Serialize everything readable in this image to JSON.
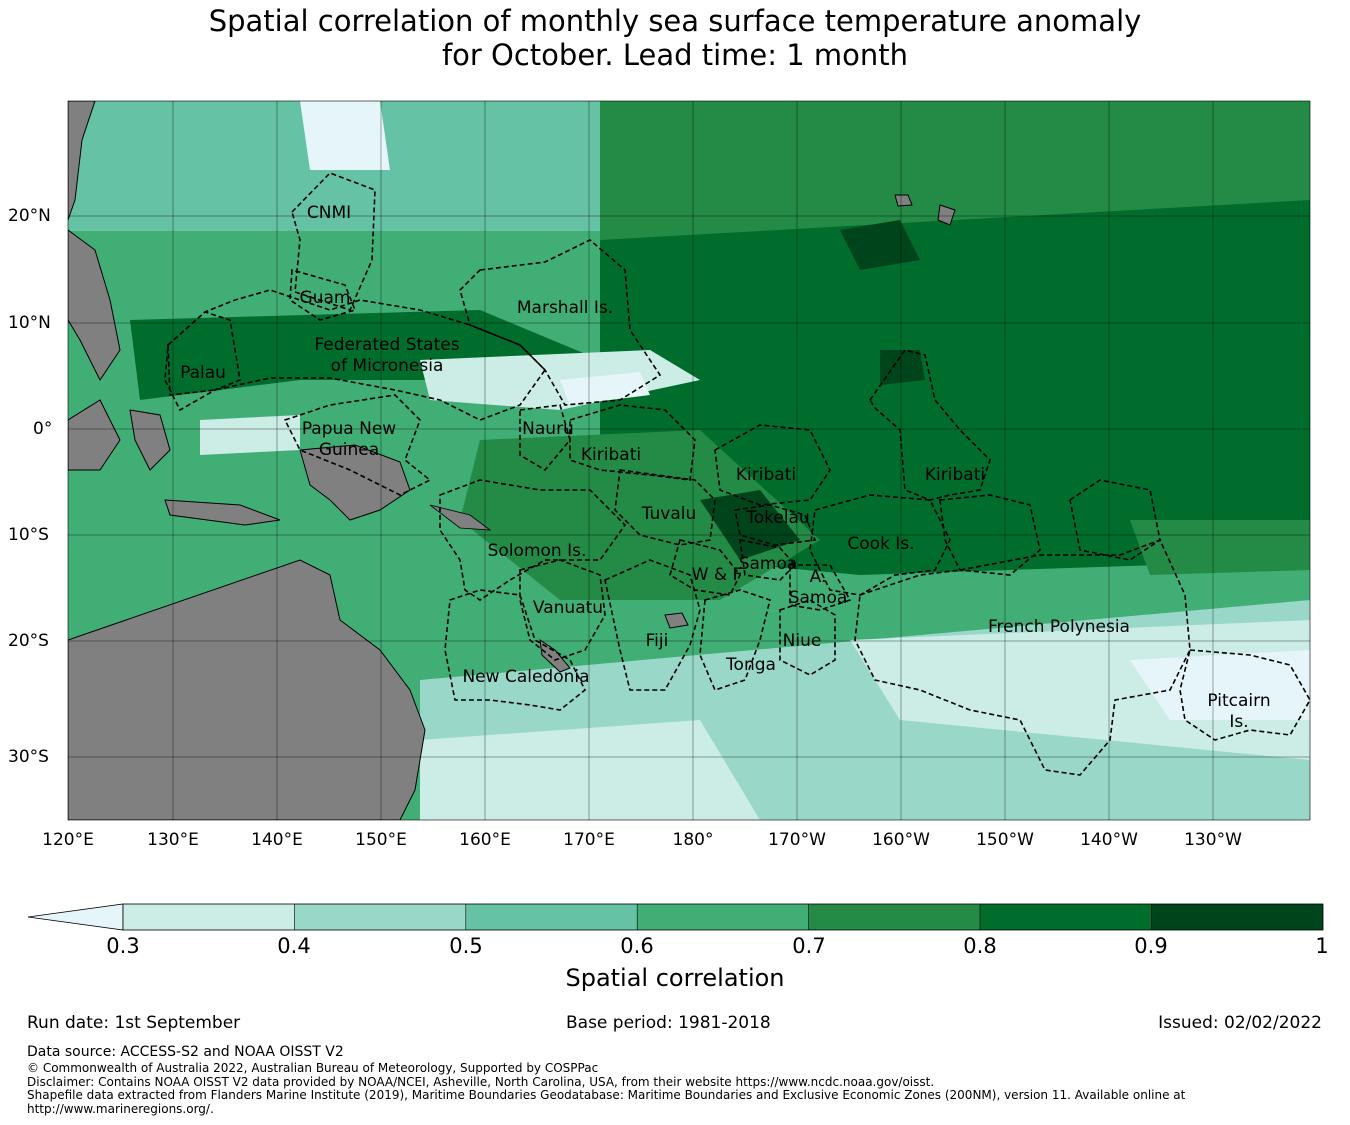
{
  "title": {
    "line1": "Spatial correlation of monthly sea surface temperature anomaly",
    "line2": "for October. Lead time: 1 month"
  },
  "map": {
    "lon_labels": [
      "120°E",
      "130°E",
      "140°E",
      "150°E",
      "160°E",
      "170°E",
      "180°",
      "170°W",
      "160°W",
      "150°W",
      "140°W",
      "130°W"
    ],
    "lat_labels": [
      "20°N",
      "10°N",
      "0°",
      "10°S",
      "20°S",
      "30°S"
    ],
    "regions": [
      {
        "name": "CNMI"
      },
      {
        "name": "Guam"
      },
      {
        "name": "Marshall Is."
      },
      {
        "name": "Federated States of Micronesia",
        "lines": [
          "Federated States",
          "of Micronesia"
        ]
      },
      {
        "name": "Palau"
      },
      {
        "name": "Nauru"
      },
      {
        "name": "Papua New Guinea",
        "lines": [
          "Papua New",
          "Guinea"
        ]
      },
      {
        "name": "Kiribati (Gilbert)",
        "label": "Kiribati"
      },
      {
        "name": "Kiribati (Phoenix)",
        "label": "Kiribati"
      },
      {
        "name": "Kiribati (Line)",
        "label": "Kiribati"
      },
      {
        "name": "Tuvalu"
      },
      {
        "name": "Tokelau"
      },
      {
        "name": "Solomon Is."
      },
      {
        "name": "Samoa"
      },
      {
        "name": "W & F"
      },
      {
        "name": "A. Samoa",
        "lines": [
          "A.",
          "Samoa"
        ]
      },
      {
        "name": "Cook Is."
      },
      {
        "name": "Vanuatu"
      },
      {
        "name": "Fiji"
      },
      {
        "name": "Niue"
      },
      {
        "name": "Tonga"
      },
      {
        "name": "French Polynesia"
      },
      {
        "name": "New Caledonia"
      },
      {
        "name": "Pitcairn Is.",
        "lines": [
          "Pitcairn",
          "Is."
        ]
      }
    ],
    "colors": {
      "land": "#808080",
      "below_min": "#e6f5f9"
    }
  },
  "colorbar": {
    "title": "Spatial correlation",
    "ticks": [
      "0.3",
      "0.4",
      "0.5",
      "0.6",
      "0.7",
      "0.8",
      "0.9",
      "1"
    ],
    "colors": [
      "#ccece6",
      "#99d8c9",
      "#66c2a4",
      "#41ae76",
      "#238b45",
      "#006d2c",
      "#00441b"
    ],
    "extend": "min"
  },
  "footer": {
    "run_date": "Run date: 1st September",
    "base_period": "Base period: 1981-2018",
    "issued": "Issued: 02/02/2022",
    "data_source": "Data source: ACCESS-S2 and NOAA OISST V2",
    "copyright": "© Commonwealth of Australia 2022, Australian Bureau of Meteorology, Supported by COSPPac",
    "disclaimer": "Disclaimer: Contains NOAA OISST V2 data provided by NOAA/NCEI, Asheville, North Carolina, USA, from their website https://www.ncdc.noaa.gov/oisst.",
    "shapefile": "Shapefile data extracted from Flanders Marine Institute (2019), Maritime Boundaries Geodatabase: Maritime Boundaries and Exclusive Economic Zones (200NM), version 11. Available online at http://www.marineregions.org/."
  }
}
